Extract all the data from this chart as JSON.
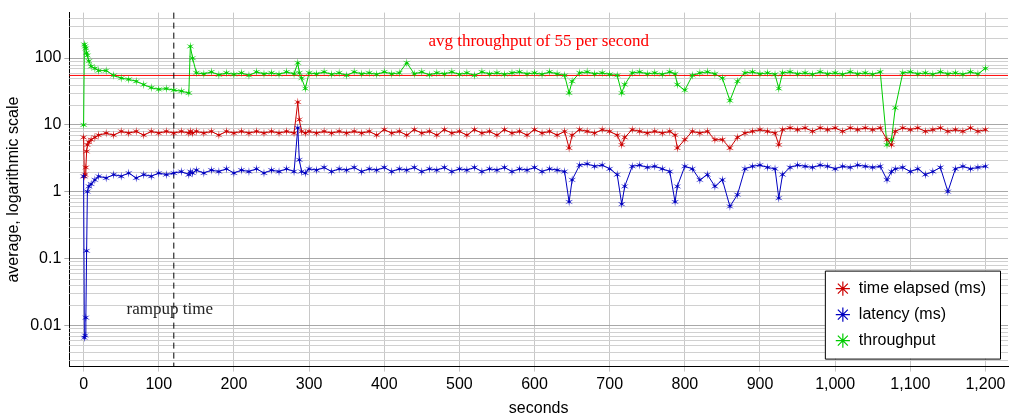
{
  "chart_data": {
    "type": "line",
    "xlabel": "seconds",
    "ylabel": "average, logarithmic scale",
    "x": [
      0,
      1,
      2,
      3,
      4,
      5,
      7,
      10,
      15,
      20,
      30,
      40,
      50,
      60,
      70,
      80,
      90,
      100,
      110,
      120,
      130,
      140,
      142,
      145,
      150,
      160,
      170,
      180,
      190,
      200,
      210,
      220,
      230,
      240,
      250,
      260,
      270,
      280,
      285,
      287,
      290,
      295,
      300,
      310,
      320,
      330,
      340,
      350,
      360,
      370,
      380,
      390,
      400,
      410,
      420,
      430,
      440,
      450,
      460,
      470,
      480,
      490,
      500,
      510,
      520,
      530,
      540,
      550,
      560,
      570,
      580,
      590,
      600,
      610,
      620,
      630,
      640,
      646,
      650,
      660,
      670,
      680,
      690,
      700,
      710,
      716,
      720,
      730,
      740,
      750,
      760,
      770,
      780,
      787,
      790,
      800,
      810,
      820,
      830,
      840,
      850,
      860,
      870,
      880,
      890,
      900,
      910,
      920,
      925,
      930,
      940,
      950,
      960,
      970,
      980,
      990,
      1000,
      1010,
      1020,
      1030,
      1040,
      1050,
      1060,
      1069,
      1075,
      1080,
      1090,
      1100,
      1110,
      1120,
      1130,
      1140,
      1150,
      1160,
      1170,
      1180,
      1190,
      1200
    ],
    "series": [
      {
        "name": "time elapsed (ms)",
        "color": "#cc0000",
        "values": [
          6.5,
          1.7,
          1.8,
          2.3,
          4,
          5,
          5.5,
          6,
          6.5,
          7,
          7.5,
          7,
          8,
          7.5,
          8,
          7,
          8,
          7.5,
          8,
          7.5,
          8,
          7.5,
          8,
          7.5,
          8,
          7.5,
          8,
          7,
          8,
          7.5,
          8,
          7.5,
          8,
          7.5,
          8,
          7.5,
          8,
          7.5,
          22,
          12,
          8,
          7.5,
          8,
          7.5,
          8,
          7.5,
          8,
          7.5,
          8,
          7.5,
          8,
          7,
          8.5,
          7.5,
          8,
          7,
          8.5,
          7.5,
          8,
          7,
          8.5,
          7.5,
          8,
          7,
          8.5,
          7.5,
          8,
          7,
          8.5,
          7.5,
          8,
          7,
          8.5,
          7.5,
          8,
          7,
          8,
          4.5,
          7,
          8.5,
          8,
          7.5,
          8.5,
          8,
          7,
          5,
          6.5,
          8.5,
          8,
          7.5,
          8,
          7.5,
          8,
          7,
          4.5,
          6,
          8,
          7.5,
          8,
          6,
          6,
          4.5,
          6.5,
          7.5,
          8,
          8.5,
          8,
          7.5,
          5,
          8.5,
          9,
          8.5,
          9,
          8,
          9,
          8.5,
          9,
          8,
          9,
          8.5,
          9,
          8.5,
          9,
          6,
          5,
          8,
          9,
          8.5,
          9,
          8,
          8.5,
          9,
          8,
          8.5,
          8,
          9,
          8,
          8.5
        ]
      },
      {
        "name": "latency (ms)",
        "color": "#0000c0",
        "values": [
          1.7,
          0.0065,
          0.007,
          0.013,
          0.13,
          1,
          1.2,
          1.3,
          1.5,
          1.7,
          1.6,
          1.8,
          1.7,
          1.9,
          1.6,
          1.8,
          1.7,
          1.9,
          1.8,
          1.9,
          2,
          1.8,
          2,
          1.9,
          2.1,
          1.9,
          2.1,
          2,
          2.2,
          1.9,
          2.1,
          2,
          2.2,
          1.9,
          2.1,
          2,
          2.2,
          2,
          9,
          3,
          2,
          1.9,
          2.2,
          2.1,
          2.3,
          2,
          2.2,
          2.1,
          2.3,
          2,
          2.2,
          2.1,
          2.3,
          2,
          2.2,
          2.1,
          2.3,
          2,
          2.2,
          2.1,
          2.3,
          2,
          2.2,
          2.1,
          2.3,
          2,
          2.2,
          2.1,
          2.3,
          2,
          2.2,
          2.1,
          2.3,
          2,
          2.2,
          2.1,
          2,
          0.7,
          1.5,
          2.5,
          2.6,
          2.4,
          2.5,
          2.2,
          1.8,
          0.65,
          1.2,
          2.4,
          2.5,
          2.3,
          2.4,
          2.2,
          2,
          0.7,
          1.2,
          2.4,
          2.2,
          1.5,
          1.8,
          1.2,
          1.5,
          0.6,
          0.9,
          2.2,
          2.4,
          2.5,
          2.3,
          2.2,
          0.8,
          1.8,
          2.3,
          2.5,
          2.4,
          2.3,
          2.5,
          2.4,
          2.2,
          2.4,
          2.3,
          2.5,
          2.4,
          2.3,
          2.4,
          1.5,
          2,
          2.2,
          2.3,
          2,
          2.2,
          1.8,
          2,
          2.3,
          1,
          2.2,
          2.4,
          2.2,
          2.3,
          2.4
        ]
      },
      {
        "name": "throughput",
        "color": "#00cc00",
        "values": [
          10,
          160,
          150,
          140,
          120,
          110,
          90,
          75,
          70,
          65,
          65,
          55,
          50,
          48,
          45,
          40,
          36,
          34,
          35,
          33,
          32,
          30,
          150,
          100,
          60,
          58,
          62,
          56,
          60,
          57,
          60,
          55,
          62,
          58,
          60,
          57,
          62,
          58,
          85,
          60,
          50,
          35,
          60,
          58,
          62,
          57,
          60,
          55,
          62,
          58,
          60,
          57,
          62,
          58,
          60,
          85,
          58,
          62,
          56,
          60,
          58,
          62,
          57,
          60,
          55,
          62,
          58,
          60,
          57,
          60,
          62,
          58,
          60,
          57,
          62,
          58,
          55,
          30,
          45,
          60,
          62,
          58,
          60,
          57,
          55,
          30,
          40,
          60,
          62,
          58,
          60,
          57,
          62,
          58,
          40,
          33,
          55,
          60,
          62,
          58,
          50,
          23,
          45,
          60,
          62,
          58,
          60,
          57,
          35,
          60,
          62,
          58,
          60,
          57,
          62,
          58,
          60,
          57,
          62,
          58,
          60,
          57,
          62,
          5,
          6,
          18,
          60,
          62,
          58,
          60,
          57,
          62,
          58,
          60,
          57,
          62,
          58,
          70
        ]
      }
    ],
    "log": "y",
    "ylim": [
      0.0024,
      480
    ],
    "yticks": [
      0.01,
      0.1,
      1,
      10,
      100
    ],
    "xlim": [
      -19,
      1230
    ],
    "xticks": [
      0,
      100,
      200,
      300,
      400,
      500,
      600,
      700,
      800,
      900,
      {
        "value": 1000,
        "label": "1,000"
      },
      {
        "value": 1100,
        "label": "1,100"
      },
      {
        "value": 1200,
        "label": "1,200"
      }
    ],
    "ref_lines": [
      {
        "axis": "y",
        "value": 55,
        "label": "avg throughput of 55 per second",
        "color": "#ff0000"
      },
      {
        "axis": "x",
        "value": 120,
        "label": "rampup time",
        "color": "#000000",
        "line_style": "dashed"
      }
    ],
    "grid": true,
    "legend": "bottom right",
    "marker": "cross",
    "line_style": "solid"
  }
}
